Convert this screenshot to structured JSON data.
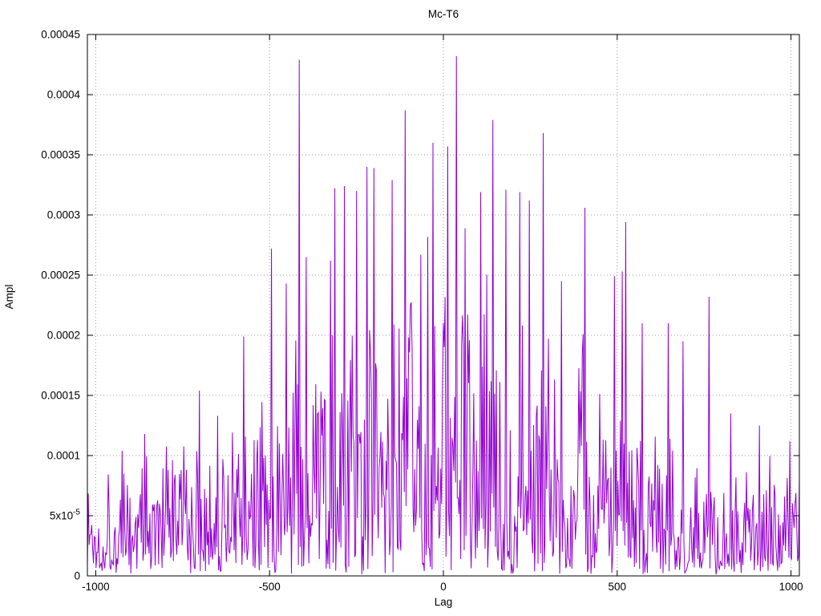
{
  "page": {
    "background_color": "#ffffff"
  },
  "chart_data": {
    "type": "line",
    "title": "Mc-T6",
    "xlabel": "Lag",
    "ylabel": "Ampl",
    "xlim": [
      -1024,
      1024
    ],
    "ylim": [
      0,
      0.00045
    ],
    "x_ticks": {
      "values": [
        -1000,
        -500,
        0,
        500,
        1000
      ],
      "labels": [
        "-1000",
        "-500",
        "0",
        "500",
        "1000"
      ]
    },
    "y_ticks": {
      "values": [
        0,
        5e-05,
        0.0001,
        0.00015,
        0.0002,
        0.00025,
        0.0003,
        0.00035,
        0.0004,
        0.00045
      ],
      "labels": [
        "0",
        "5x10^-5",
        "0.0001",
        "0.00015",
        "0.0002",
        "0.00025",
        "0.0003",
        "0.00035",
        "0.0004",
        "0.00045"
      ]
    },
    "grid": {
      "visible": true,
      "color": "#9a9a9a",
      "pattern": "dotted"
    },
    "legend": "none",
    "line_color": "#9400d3",
    "border_color": "#000000",
    "peaks": [
      [
        -925,
        0.000104
      ],
      [
        -860,
        0.000118
      ],
      [
        -703,
        0.000154
      ],
      [
        -650,
        0.000133
      ],
      [
        -574,
        0.000199
      ],
      [
        -494,
        0.000272
      ],
      [
        -452,
        0.000243
      ],
      [
        -415,
        0.000429
      ],
      [
        -395,
        0.000265
      ],
      [
        -325,
        0.000262
      ],
      [
        -311,
        0.000322
      ],
      [
        -284,
        0.000324
      ],
      [
        -249,
        0.00032
      ],
      [
        -221,
        0.00034
      ],
      [
        -201,
        0.000339
      ],
      [
        -148,
        0.000329
      ],
      [
        -111,
        0.000387
      ],
      [
        -65,
        0.000267
      ],
      [
        -30,
        0.00036
      ],
      [
        12,
        0.000357
      ],
      [
        37,
        0.000432
      ],
      [
        62,
        0.000289
      ],
      [
        108,
        0.000319
      ],
      [
        143,
        0.000379
      ],
      [
        180,
        0.000321
      ],
      [
        219,
        0.000319
      ],
      [
        247,
        0.000312
      ],
      [
        286,
        0.000368
      ],
      [
        340,
        0.000245
      ],
      [
        406,
        0.000306
      ],
      [
        491,
        0.000249
      ],
      [
        514,
        0.000253
      ],
      [
        524,
        0.000294
      ],
      [
        572,
        0.00021
      ],
      [
        646,
        0.00021
      ],
      [
        690,
        0.000195
      ],
      [
        764,
        0.000232
      ],
      [
        826,
        0.000135
      ],
      [
        908,
        0.000125
      ],
      [
        997,
        0.000112
      ]
    ],
    "noise_model": {
      "seed": 1337,
      "points": 821,
      "envelope_center": 0.00032,
      "envelope_edge": 0.0001,
      "envelope_power": 1.5,
      "value_power": 1.6,
      "mod_depth": 0.2
    }
  }
}
